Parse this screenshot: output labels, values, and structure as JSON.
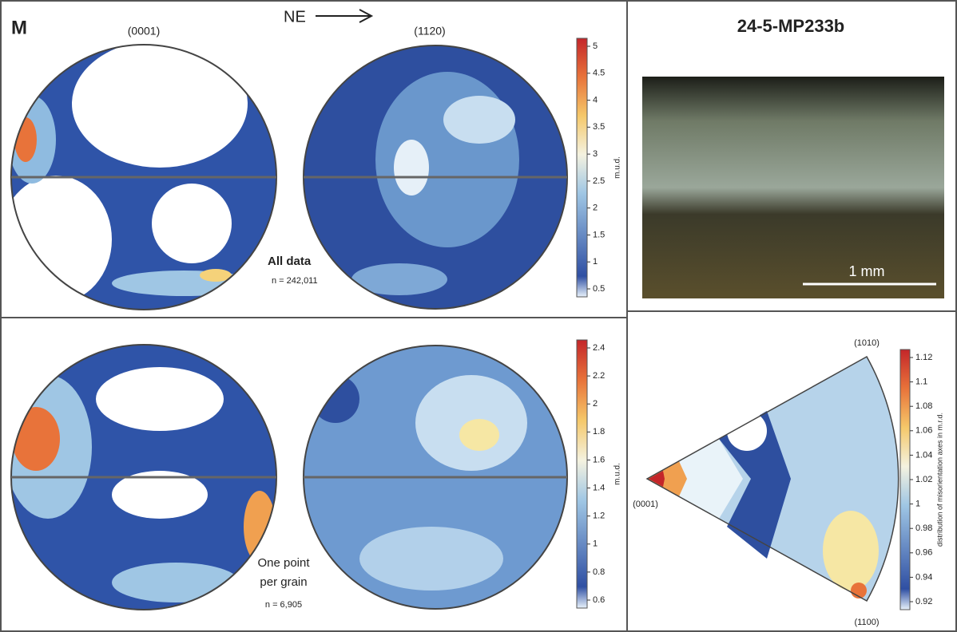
{
  "figure": {
    "panel_letter": "M",
    "direction": "NE",
    "pole_labels": [
      "(0001)",
      "(1120)"
    ],
    "top_row": {
      "label": "All data",
      "count": "n = 242,011"
    },
    "bottom_row": {
      "label_line1": "One point",
      "label_line2": "per grain",
      "count": "n = 6,905"
    },
    "colorbars": [
      {
        "label": "m.u.d.",
        "ticks": [
          0.5,
          1,
          1.5,
          2,
          2.5,
          3,
          3.5,
          4,
          4.5,
          5
        ]
      },
      {
        "label": "m.u.d.",
        "ticks": [
          0.6,
          0.8,
          1,
          1.2,
          1.4,
          1.6,
          1.8,
          2,
          2.2,
          2.4
        ]
      },
      {
        "label": "distribution of misorientation axes in m.r.d.",
        "ticks": [
          0.92,
          0.94,
          0.96,
          0.98,
          1,
          1.02,
          1.04,
          1.06,
          1.08,
          1.1,
          1.12
        ]
      }
    ],
    "sample_title": "24-5-MP233b",
    "scale_bar": "1 mm",
    "ipf_labels": [
      "(1010)",
      "(0001)",
      "(1100)"
    ]
  }
}
